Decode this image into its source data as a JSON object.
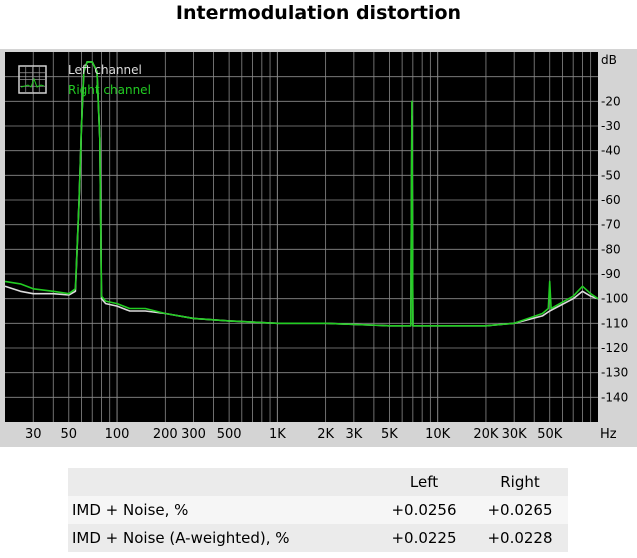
{
  "title": "Intermodulation distortion",
  "colors": {
    "background": "#000000",
    "grid": "#8a8a8a",
    "frame": "#d2d2d2",
    "left_channel": "#dcdcdc",
    "right_channel": "#22cc22"
  },
  "chart_data": {
    "type": "line",
    "title": "Intermodulation distortion",
    "x_scale": "log",
    "xlim": [
      20,
      100000
    ],
    "ylim": [
      -150,
      0
    ],
    "x_unit": "Hz",
    "y_unit": "dB",
    "grid": true,
    "legend_position": "top-left",
    "x_ticks": [
      {
        "value": 30,
        "label": "30"
      },
      {
        "value": 50,
        "label": "50"
      },
      {
        "value": 100,
        "label": "100"
      },
      {
        "value": 200,
        "label": "200"
      },
      {
        "value": 300,
        "label": "300"
      },
      {
        "value": 500,
        "label": "500"
      },
      {
        "value": 1000,
        "label": "1K"
      },
      {
        "value": 2000,
        "label": "2K"
      },
      {
        "value": 3000,
        "label": "3K"
      },
      {
        "value": 5000,
        "label": "5K"
      },
      {
        "value": 10000,
        "label": "10K"
      },
      {
        "value": 20000,
        "label": "20K"
      },
      {
        "value": 30000,
        "label": "30K"
      },
      {
        "value": 50000,
        "label": "50K"
      }
    ],
    "y_ticks": [
      {
        "value": -20,
        "label": "-20"
      },
      {
        "value": -30,
        "label": "-30"
      },
      {
        "value": -40,
        "label": "-40"
      },
      {
        "value": -50,
        "label": "-50"
      },
      {
        "value": -60,
        "label": "-60"
      },
      {
        "value": -70,
        "label": "-70"
      },
      {
        "value": -80,
        "label": "-80"
      },
      {
        "value": -90,
        "label": "-90"
      },
      {
        "value": -100,
        "label": "-100"
      },
      {
        "value": -110,
        "label": "-110"
      },
      {
        "value": -120,
        "label": "-120"
      },
      {
        "value": -130,
        "label": "-130"
      },
      {
        "value": -140,
        "label": "-140"
      }
    ],
    "series": [
      {
        "name": "Left channel",
        "color": "#dcdcdc",
        "points": [
          [
            20,
            -95
          ],
          [
            25,
            -97
          ],
          [
            30,
            -98
          ],
          [
            40,
            -98
          ],
          [
            50,
            -98.5
          ],
          [
            55,
            -97
          ],
          [
            58,
            -60
          ],
          [
            60,
            -30
          ],
          [
            62,
            -8
          ],
          [
            65,
            -4
          ],
          [
            70,
            -4
          ],
          [
            75,
            -8
          ],
          [
            78,
            -35
          ],
          [
            80,
            -100
          ],
          [
            85,
            -102
          ],
          [
            100,
            -103
          ],
          [
            120,
            -105
          ],
          [
            150,
            -105
          ],
          [
            200,
            -106
          ],
          [
            300,
            -108
          ],
          [
            500,
            -109
          ],
          [
            1000,
            -110
          ],
          [
            2000,
            -110
          ],
          [
            5000,
            -111
          ],
          [
            6800,
            -111
          ],
          [
            6900,
            -26
          ],
          [
            7000,
            -111
          ],
          [
            10000,
            -111
          ],
          [
            20000,
            -111
          ],
          [
            30000,
            -110
          ],
          [
            45000,
            -107
          ],
          [
            50000,
            -105
          ],
          [
            70000,
            -100
          ],
          [
            80000,
            -97
          ],
          [
            90000,
            -99
          ],
          [
            100000,
            -100
          ]
        ]
      },
      {
        "name": "Right channel",
        "color": "#22cc22",
        "points": [
          [
            20,
            -93
          ],
          [
            25,
            -94
          ],
          [
            30,
            -96
          ],
          [
            40,
            -97
          ],
          [
            50,
            -98
          ],
          [
            55,
            -96
          ],
          [
            58,
            -60
          ],
          [
            60,
            -30
          ],
          [
            62,
            -8
          ],
          [
            65,
            -4
          ],
          [
            70,
            -4
          ],
          [
            75,
            -8
          ],
          [
            78,
            -35
          ],
          [
            80,
            -99
          ],
          [
            85,
            -101
          ],
          [
            100,
            -102
          ],
          [
            120,
            -104
          ],
          [
            150,
            -104
          ],
          [
            200,
            -106
          ],
          [
            300,
            -108
          ],
          [
            500,
            -109
          ],
          [
            1000,
            -110
          ],
          [
            2000,
            -110
          ],
          [
            5000,
            -111
          ],
          [
            6800,
            -111
          ],
          [
            6900,
            -20
          ],
          [
            7000,
            -111
          ],
          [
            10000,
            -111
          ],
          [
            20000,
            -111
          ],
          [
            30000,
            -110
          ],
          [
            45000,
            -106
          ],
          [
            49000,
            -104
          ],
          [
            50000,
            -93
          ],
          [
            51000,
            -104
          ],
          [
            70000,
            -99
          ],
          [
            80000,
            -95
          ],
          [
            90000,
            -98
          ],
          [
            100000,
            -100
          ]
        ]
      }
    ]
  },
  "results_table": {
    "headers": [
      "",
      "Left",
      "Right"
    ],
    "rows": [
      {
        "label": "IMD + Noise, %",
        "left": "+0.0256",
        "right": "+0.0265"
      },
      {
        "label": "IMD + Noise (A-weighted), %",
        "left": "+0.0225",
        "right": "+0.0228"
      }
    ]
  }
}
